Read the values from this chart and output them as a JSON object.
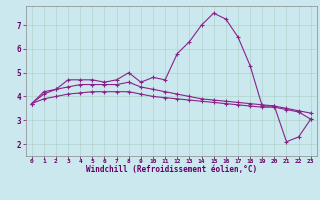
{
  "xlabel": "Windchill (Refroidissement éolien,°C)",
  "background_color": "#cbe8ef",
  "grid_color": "#b0d4cc",
  "line_color": "#882288",
  "x": [
    0,
    1,
    2,
    3,
    4,
    5,
    6,
    7,
    8,
    9,
    10,
    11,
    12,
    13,
    14,
    15,
    16,
    17,
    18,
    19,
    20,
    21,
    22,
    23
  ],
  "line1": [
    3.7,
    4.2,
    4.3,
    4.7,
    4.7,
    4.7,
    4.6,
    4.7,
    5.0,
    4.6,
    4.8,
    4.7,
    5.8,
    6.3,
    7.0,
    7.5,
    7.25,
    6.5,
    5.3,
    3.6,
    3.6,
    2.1,
    2.3,
    3.05
  ],
  "line2": [
    3.7,
    4.1,
    4.3,
    4.4,
    4.5,
    4.5,
    4.5,
    4.5,
    4.6,
    4.4,
    4.3,
    4.2,
    4.1,
    4.0,
    3.9,
    3.85,
    3.8,
    3.75,
    3.7,
    3.65,
    3.6,
    3.5,
    3.4,
    3.3
  ],
  "line3": [
    3.7,
    3.9,
    4.0,
    4.1,
    4.15,
    4.2,
    4.2,
    4.2,
    4.2,
    4.1,
    4.0,
    3.95,
    3.9,
    3.85,
    3.8,
    3.75,
    3.7,
    3.65,
    3.6,
    3.55,
    3.55,
    3.45,
    3.35,
    3.05
  ],
  "ylim": [
    1.5,
    7.8
  ],
  "yticks": [
    2,
    3,
    4,
    5,
    6,
    7
  ],
  "xticks": [
    0,
    1,
    2,
    3,
    4,
    5,
    6,
    7,
    8,
    9,
    10,
    11,
    12,
    13,
    14,
    15,
    16,
    17,
    18,
    19,
    20,
    21,
    22,
    23
  ]
}
